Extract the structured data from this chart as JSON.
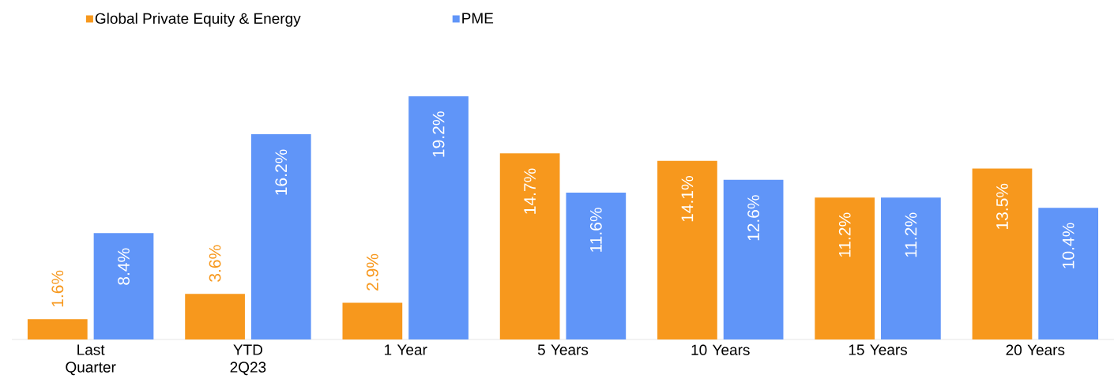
{
  "chart_data": {
    "type": "bar",
    "categories": [
      "Last Quarter",
      "YTD 2Q23",
      "1 Year",
      "5 Years",
      "10 Years",
      "15 Years",
      "20 Years"
    ],
    "series": [
      {
        "name": "Global Private Equity & Energy",
        "color": "#f7981d",
        "values": [
          1.6,
          3.6,
          2.9,
          14.7,
          14.1,
          11.2,
          13.5
        ],
        "value_labels": [
          "1.6%",
          "3.6%",
          "2.9%",
          "14.7%",
          "14.1%",
          "11.2%",
          "13.5%"
        ]
      },
      {
        "name": "PME",
        "color": "#6095f8",
        "values": [
          8.4,
          16.2,
          19.2,
          11.6,
          12.6,
          11.2,
          10.4
        ],
        "value_labels": [
          "8.4%",
          "16.2%",
          "19.2%",
          "11.6%",
          "12.6%",
          "11.2%",
          "10.4%"
        ]
      }
    ],
    "legend": "top left"
  }
}
